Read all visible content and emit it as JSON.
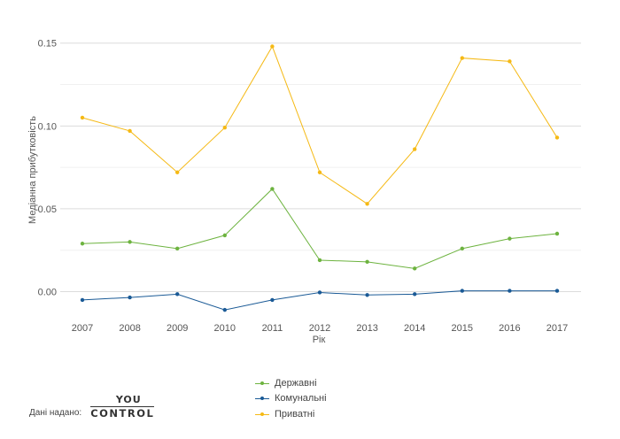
{
  "chart_data": {
    "type": "line",
    "title": "",
    "xlabel": "Рік",
    "ylabel": "Медіанна прибутковість",
    "x": [
      "2007",
      "2008",
      "2009",
      "2010",
      "2011",
      "2012",
      "2013",
      "2014",
      "2015",
      "2016",
      "2017"
    ],
    "ylim": [
      -0.012,
      0.16
    ],
    "yticks": [
      "0.00",
      "0.05",
      "0.10",
      "0.15"
    ],
    "ytick_values": [
      0,
      0.05,
      0.1,
      0.15
    ],
    "grid": true,
    "legend_position": "bottom-center",
    "series": [
      {
        "name": "Державні",
        "color": "#6db33f",
        "values": [
          0.029,
          0.03,
          0.026,
          0.034,
          0.062,
          0.019,
          0.018,
          0.014,
          0.026,
          0.032,
          0.035
        ]
      },
      {
        "name": "Комунальні",
        "color": "#1a5a96",
        "values": [
          -0.005,
          -0.0035,
          -0.0015,
          -0.011,
          -0.005,
          -0.0005,
          -0.002,
          -0.0015,
          0.0005,
          0.0005,
          0.0005
        ]
      },
      {
        "name": "Приватні",
        "color": "#f5b914",
        "values": [
          0.105,
          0.097,
          0.072,
          0.099,
          0.148,
          0.072,
          0.053,
          0.086,
          0.141,
          0.139,
          0.093
        ]
      }
    ]
  },
  "source": {
    "label": "Дані надано:",
    "logo_top": "YOU",
    "logo_bottom": "CONTROL"
  }
}
